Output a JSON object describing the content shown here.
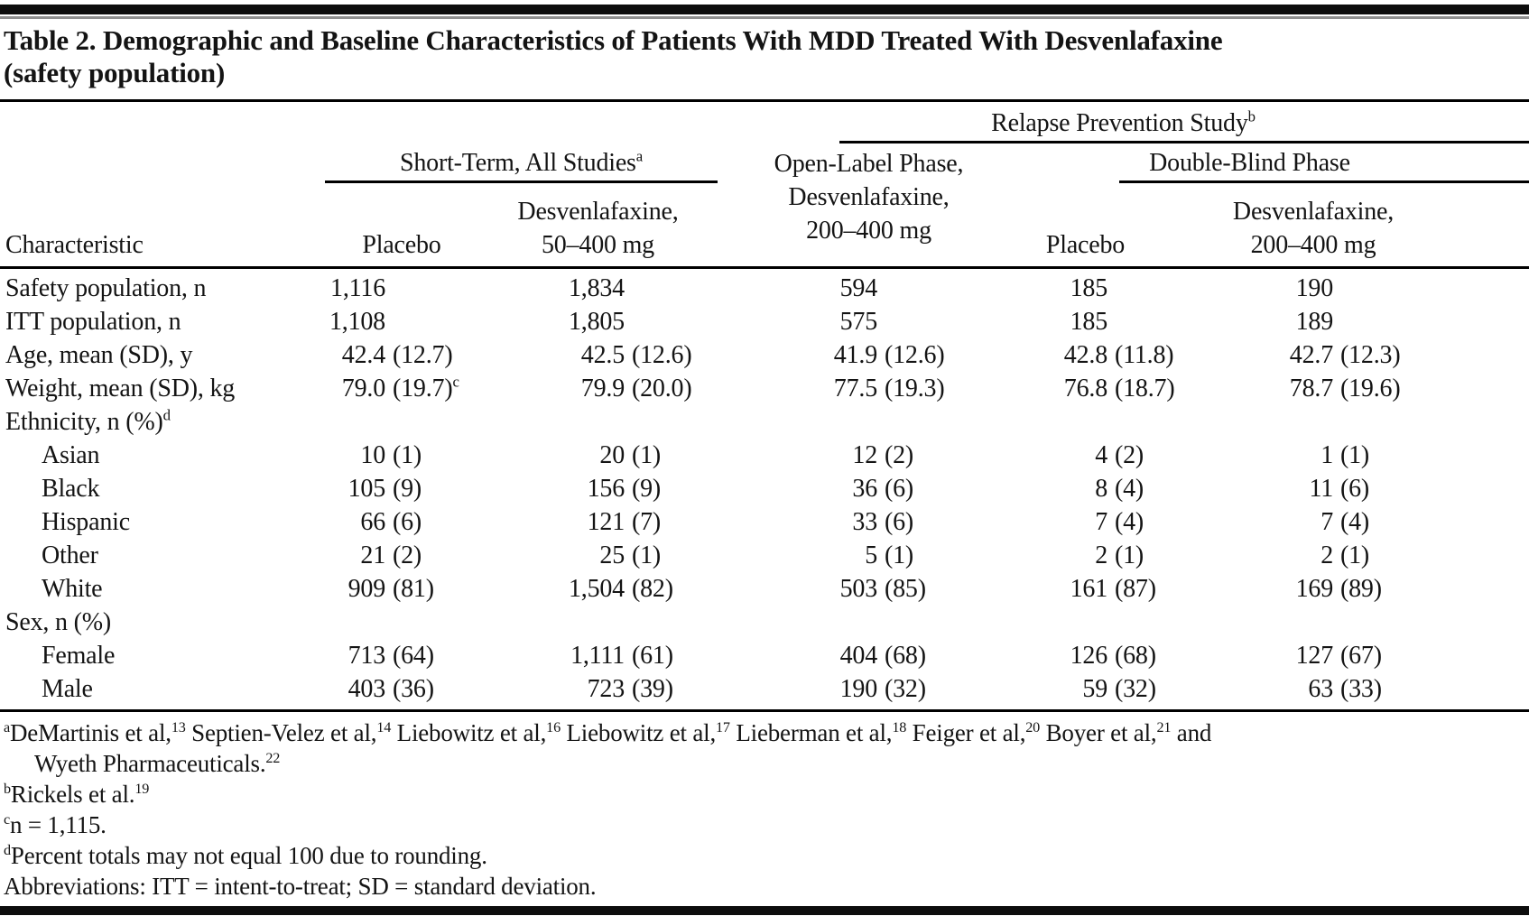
{
  "title": "Table 2. Demographic and Baseline Characteristics of Patients With MDD Treated With Desvenlafaxine\n(safety population)",
  "header": {
    "characteristic": "Characteristic",
    "short_term": {
      "label": "Short-Term, All Studies",
      "sup": "a"
    },
    "relapse": {
      "label": "Relapse Prevention Study",
      "sup": "b"
    },
    "open_label": "Open-Label Phase,\nDesvenlafaxine,\n200–400 mg",
    "double_blind": "Double-Blind Phase",
    "col_placebo_short": "Placebo",
    "col_desven_short": "Desvenlafaxine,\n50–400 mg",
    "col_placebo_db": "Placebo",
    "col_desven_db": "Desvenlafaxine,\n200–400 mg"
  },
  "rows": [
    {
      "label": "Safety population, n",
      "sup": "",
      "indent": false,
      "values": [
        "1,116",
        "1,834",
        "594",
        "185",
        "190"
      ],
      "vsups": [
        "",
        "",
        "",
        "",
        ""
      ]
    },
    {
      "label": "ITT population, n",
      "sup": "",
      "indent": false,
      "values": [
        "1,108",
        "1,805",
        "575",
        "185",
        "189"
      ],
      "vsups": [
        "",
        "",
        "",
        "",
        ""
      ]
    },
    {
      "label": "Age, mean (SD), y",
      "sup": "",
      "indent": false,
      "values": [
        "42.4 (12.7)",
        "42.5 (12.6)",
        "41.9 (12.6)",
        "42.8 (11.8)",
        "42.7 (12.3)"
      ],
      "vsups": [
        "",
        "",
        "",
        "",
        ""
      ]
    },
    {
      "label": "Weight, mean (SD), kg",
      "sup": "",
      "indent": false,
      "values": [
        "79.0 (19.7)",
        "79.9 (20.0)",
        "77.5 (19.3)",
        "76.8 (18.7)",
        "78.7 (19.6)"
      ],
      "vsups": [
        "c",
        "",
        "",
        "",
        ""
      ]
    },
    {
      "label": "Ethnicity, n (%)",
      "sup": "d",
      "indent": false,
      "values": [
        "",
        "",
        "",
        "",
        ""
      ],
      "vsups": [
        "",
        "",
        "",
        "",
        ""
      ]
    },
    {
      "label": "Asian",
      "sup": "",
      "indent": true,
      "values": [
        "10 (1)",
        "20 (1)",
        "12 (2)",
        "4 (2)",
        "1 (1)"
      ],
      "vsups": [
        "",
        "",
        "",
        "",
        ""
      ]
    },
    {
      "label": "Black",
      "sup": "",
      "indent": true,
      "values": [
        "105 (9)",
        "156 (9)",
        "36 (6)",
        "8 (4)",
        "11 (6)"
      ],
      "vsups": [
        "",
        "",
        "",
        "",
        ""
      ]
    },
    {
      "label": "Hispanic",
      "sup": "",
      "indent": true,
      "values": [
        "66 (6)",
        "121 (7)",
        "33 (6)",
        "7 (4)",
        "7 (4)"
      ],
      "vsups": [
        "",
        "",
        "",
        "",
        ""
      ]
    },
    {
      "label": "Other",
      "sup": "",
      "indent": true,
      "values": [
        "21 (2)",
        "25 (1)",
        "5 (1)",
        "2 (1)",
        "2 (1)"
      ],
      "vsups": [
        "",
        "",
        "",
        "",
        ""
      ]
    },
    {
      "label": "White",
      "sup": "",
      "indent": true,
      "values": [
        "909 (81)",
        "1,504 (82)",
        "503 (85)",
        "161 (87)",
        "169 (89)"
      ],
      "vsups": [
        "",
        "",
        "",
        "",
        ""
      ]
    },
    {
      "label": "Sex, n (%)",
      "sup": "",
      "indent": false,
      "values": [
        "",
        "",
        "",
        "",
        ""
      ],
      "vsups": [
        "",
        "",
        "",
        "",
        ""
      ]
    },
    {
      "label": "Female",
      "sup": "",
      "indent": true,
      "values": [
        "713 (64)",
        "1,111 (61)",
        "404 (68)",
        "126 (68)",
        "127 (67)"
      ],
      "vsups": [
        "",
        "",
        "",
        "",
        ""
      ]
    },
    {
      "label": "Male",
      "sup": "",
      "indent": true,
      "values": [
        "403 (36)",
        "723 (39)",
        "190 (32)",
        "59 (32)",
        "63 (33)"
      ],
      "vsups": [
        "",
        "",
        "",
        "",
        ""
      ]
    }
  ],
  "footnotes": [
    {
      "marker": "a",
      "segments": [
        {
          "t": "DeMartinis et al,",
          "s": "13"
        },
        {
          "t": " Septien-Velez et al,",
          "s": "14"
        },
        {
          "t": " Liebowitz et al,",
          "s": "16"
        },
        {
          "t": " Liebowitz et al,",
          "s": "17"
        },
        {
          "t": " Lieberman et al,",
          "s": "18"
        },
        {
          "t": " Feiger et al,",
          "s": "20"
        },
        {
          "t": " Boyer et al,",
          "s": "21"
        },
        {
          "t": " and\nWyeth Pharmaceuticals.",
          "s": "22"
        }
      ]
    },
    {
      "marker": "b",
      "segments": [
        {
          "t": "Rickels et al.",
          "s": "19"
        }
      ]
    },
    {
      "marker": "c",
      "segments": [
        {
          "t": "n = 1,115.",
          "s": ""
        }
      ]
    },
    {
      "marker": "d",
      "segments": [
        {
          "t": "Percent totals may not equal 100 due to rounding.",
          "s": ""
        }
      ]
    },
    {
      "marker": "",
      "segments": [
        {
          "t": "Abbreviations: ITT = intent-to-treat; SD = standard deviation.",
          "s": ""
        }
      ]
    }
  ]
}
